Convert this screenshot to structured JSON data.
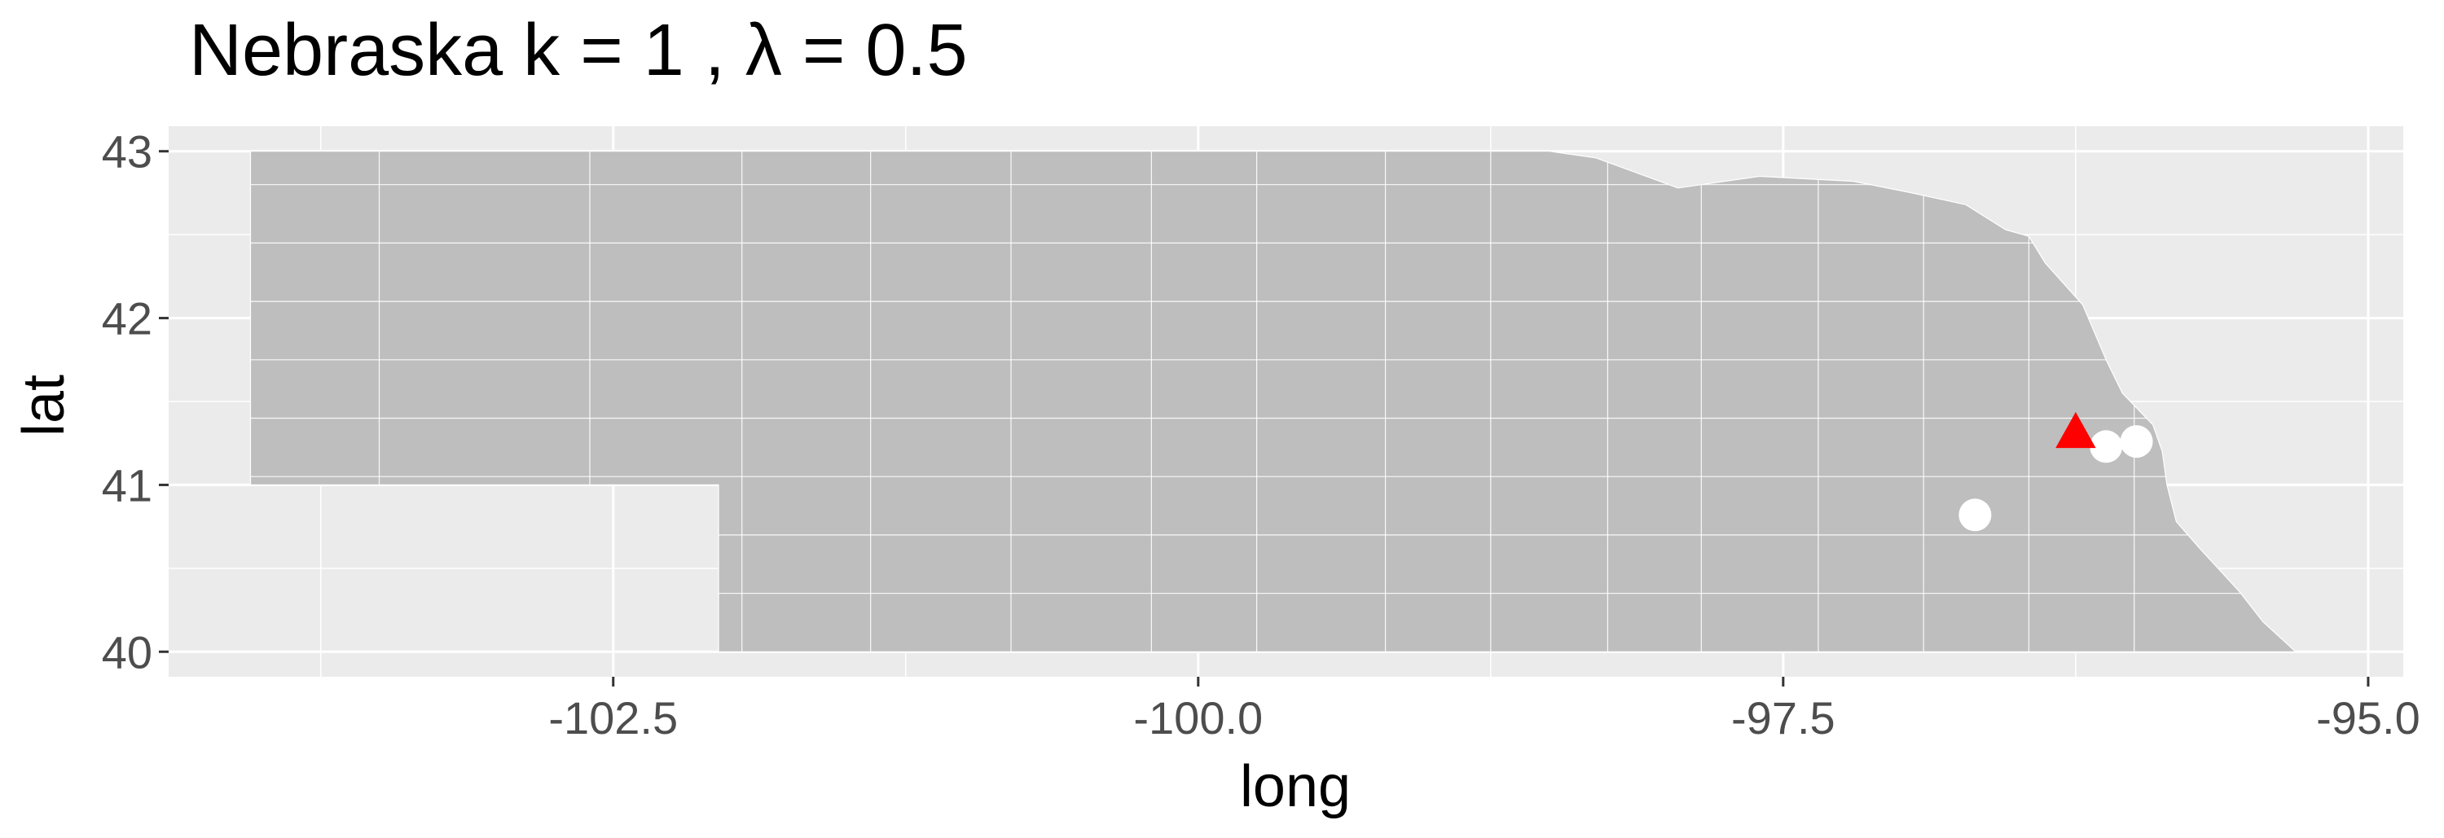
{
  "title": "Nebraska  k =  1 ,  λ  =  0.5",
  "chart_data": {
    "type": "scatter",
    "title": "Nebraska  k =  1 ,  λ  =  0.5",
    "xlabel": "long",
    "ylabel": "lat",
    "xlim": [
      -104.4,
      -94.85
    ],
    "ylim": [
      39.85,
      43.15
    ],
    "x_ticks": [
      -102.5,
      -100.0,
      -97.5,
      -95.0
    ],
    "x_tick_labels": [
      "-102.5",
      "-100.0",
      "-97.5",
      "-95.0"
    ],
    "y_ticks": [
      40,
      41,
      42,
      43
    ],
    "y_tick_labels": [
      "40",
      "41",
      "42",
      "43"
    ],
    "grid": true,
    "background_color": "#ebebeb",
    "map_fill_color": "#bebebe",
    "map_border_color": "#ffffff",
    "series": [
      {
        "marker": "circle",
        "color": "#ffffff",
        "points": [
          {
            "x": -96.68,
            "y": 40.82
          },
          {
            "x": -96.12,
            "y": 41.23
          },
          {
            "x": -95.99,
            "y": 41.26
          }
        ]
      },
      {
        "marker": "triangle",
        "color": "#ff0000",
        "points": [
          {
            "x": -96.25,
            "y": 41.31
          }
        ]
      }
    ]
  }
}
